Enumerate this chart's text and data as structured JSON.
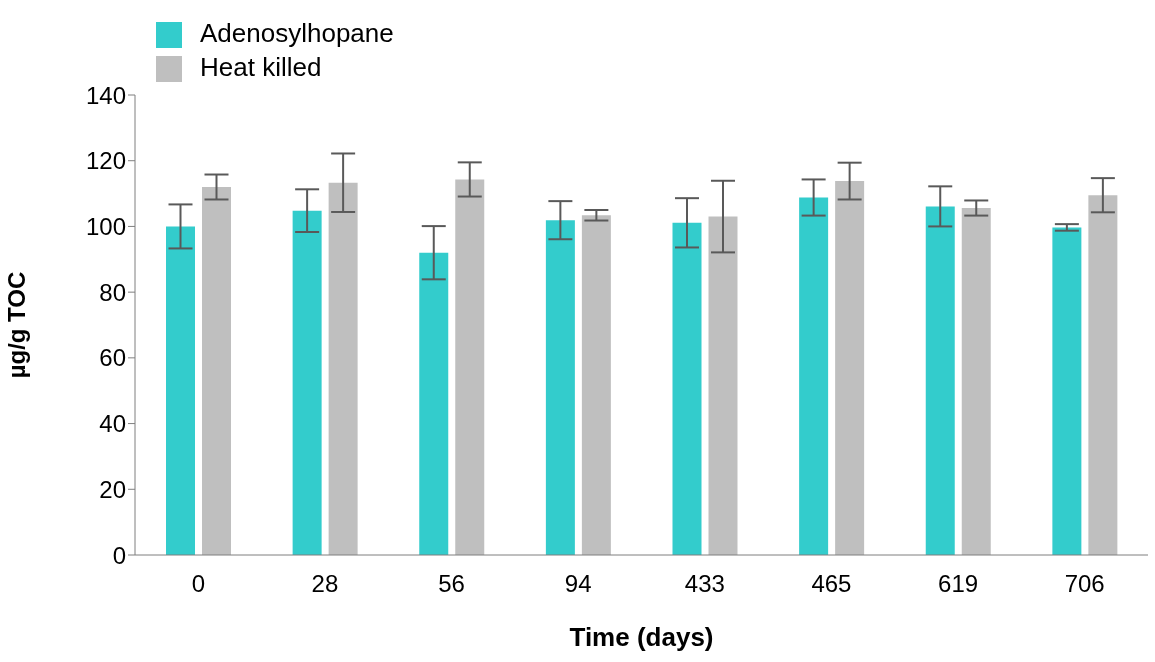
{
  "chart_data": {
    "type": "bar",
    "xlabel": "Time (days)",
    "ylabel": "µg/g TOC",
    "categories": [
      "0",
      "28",
      "56",
      "94",
      "433",
      "465",
      "619",
      "706"
    ],
    "series": [
      {
        "name": "Adenosylhopane",
        "color": "#33cccc",
        "values": [
          100,
          104.8,
          92,
          101.9,
          101.1,
          108.8,
          106.1,
          99.7
        ],
        "errors": [
          6.7,
          6.5,
          8.1,
          5.8,
          7.5,
          5.5,
          6.1,
          1
        ]
      },
      {
        "name": "Heat killed",
        "color": "#bfbfbf",
        "values": [
          112,
          113.3,
          114.3,
          103.4,
          103,
          113.8,
          105.6,
          109.5
        ],
        "errors": [
          3.8,
          8.9,
          5.2,
          1.6,
          10.9,
          5.6,
          2.3,
          5.2
        ]
      }
    ],
    "ylim": [
      0,
      140
    ],
    "yticks": [
      0,
      20,
      40,
      60,
      80,
      100,
      120,
      140
    ],
    "grid": false,
    "legend": "top left"
  }
}
